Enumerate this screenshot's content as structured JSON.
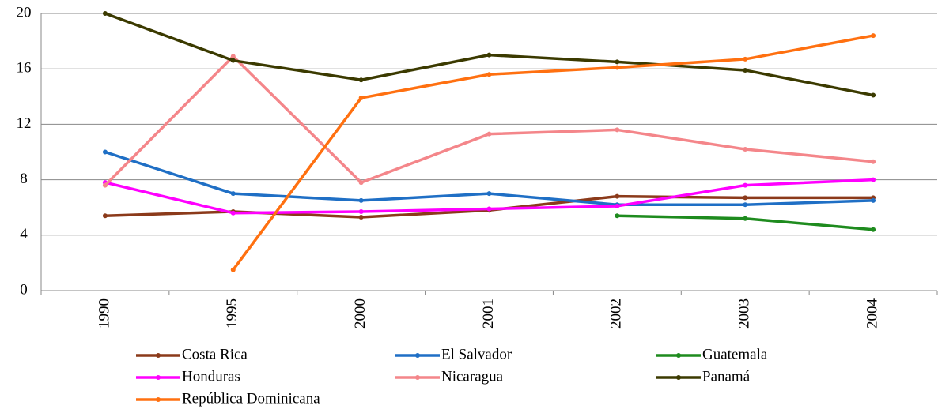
{
  "chart_data": {
    "type": "line",
    "categories": [
      "1990",
      "1995",
      "2000",
      "2001",
      "2002",
      "2003",
      "2004"
    ],
    "series": [
      {
        "name": "Costa Rica",
        "color": "#8b3a1a",
        "values": [
          5.4,
          5.7,
          5.3,
          5.8,
          6.8,
          6.7,
          6.7
        ]
      },
      {
        "name": "El Salvador",
        "color": "#1f6fc5",
        "values": [
          10.0,
          7.0,
          6.5,
          7.0,
          6.2,
          6.2,
          6.5
        ]
      },
      {
        "name": "Guatemala",
        "color": "#1e8b1e",
        "values": [
          null,
          null,
          null,
          null,
          5.4,
          5.2,
          4.4
        ]
      },
      {
        "name": "Honduras",
        "color": "#ff00ff",
        "values": [
          7.8,
          5.6,
          5.7,
          5.9,
          6.1,
          7.6,
          8.0
        ]
      },
      {
        "name": "Nicaragua",
        "color": "#f4868a",
        "values": [
          7.6,
          16.9,
          7.8,
          11.3,
          11.6,
          10.2,
          9.3
        ]
      },
      {
        "name": "Panamá",
        "color": "#3b3a00",
        "values": [
          20.0,
          16.6,
          15.2,
          17.0,
          16.5,
          15.9,
          14.1
        ]
      },
      {
        "name": "República Dominicana",
        "color": "#ff7010",
        "values": [
          null,
          1.5,
          13.9,
          15.6,
          16.1,
          16.7,
          18.4
        ]
      }
    ],
    "ylim": [
      0,
      20
    ],
    "yticks": [
      0,
      4,
      8,
      12,
      16,
      20
    ],
    "grid": true
  }
}
